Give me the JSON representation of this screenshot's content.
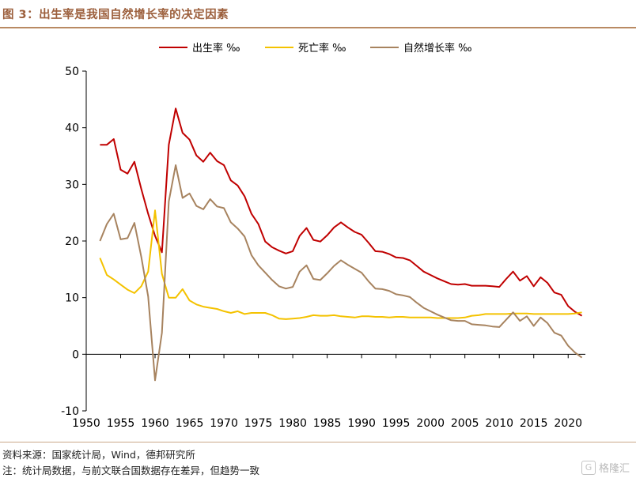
{
  "header": {
    "title": "图 3：出生率是我国自然增长率的决定因素"
  },
  "footer": {
    "source": "资料来源：国家统计局，Wind，德邦研究所",
    "note": "注：统计局数据，与前文联合国数据存在差异，但趋势一致"
  },
  "watermark": {
    "icon": "G",
    "text": "格隆汇"
  },
  "chart_data": {
    "type": "line",
    "x": [
      1952,
      1953,
      1954,
      1955,
      1956,
      1957,
      1958,
      1959,
      1960,
      1961,
      1962,
      1963,
      1964,
      1965,
      1966,
      1967,
      1968,
      1969,
      1970,
      1971,
      1972,
      1973,
      1974,
      1975,
      1976,
      1977,
      1978,
      1979,
      1980,
      1981,
      1982,
      1983,
      1984,
      1985,
      1986,
      1987,
      1988,
      1989,
      1990,
      1991,
      1992,
      1993,
      1994,
      1995,
      1996,
      1997,
      1998,
      1999,
      2000,
      2001,
      2002,
      2003,
      2004,
      2005,
      2006,
      2007,
      2008,
      2009,
      2010,
      2011,
      2012,
      2013,
      2014,
      2015,
      2016,
      2017,
      2018,
      2019,
      2020,
      2021,
      2022
    ],
    "xticks": [
      1950,
      1955,
      1960,
      1965,
      1970,
      1975,
      1980,
      1985,
      1990,
      1995,
      2000,
      2005,
      2010,
      2015,
      2020
    ],
    "yticks": [
      -10,
      0,
      10,
      20,
      30,
      40,
      50
    ],
    "xlim": [
      1950,
      2022.5
    ],
    "ylim": [
      -10,
      50
    ],
    "grid": false,
    "legend_position": "top",
    "series": [
      {
        "name": "出生率 ‰",
        "color": "#c00000",
        "values": [
          37,
          37,
          38,
          32.6,
          31.9,
          34,
          29.2,
          24.8,
          20.9,
          18,
          37,
          43.4,
          39.1,
          37.9,
          35.1,
          34,
          35.6,
          34.1,
          33.4,
          30.7,
          29.8,
          27.9,
          24.8,
          23,
          19.9,
          18.9,
          18.3,
          17.8,
          18.2,
          20.9,
          22.3,
          20.2,
          19.9,
          21,
          22.4,
          23.3,
          22.4,
          21.6,
          21.1,
          19.7,
          18.2,
          18.1,
          17.7,
          17.1,
          17,
          16.6,
          15.6,
          14.6,
          14,
          13.4,
          12.9,
          12.4,
          12.3,
          12.4,
          12.1,
          12.1,
          12.1,
          12,
          11.9,
          13.3,
          14.6,
          13,
          13.8,
          12,
          13.6,
          12.6,
          10.9,
          10.5,
          8.5,
          7.5,
          6.8
        ]
      },
      {
        "name": "死亡率 ‰",
        "color": "#f4c200",
        "values": [
          17,
          14,
          13.2,
          12.3,
          11.4,
          10.8,
          12,
          14.6,
          25.4,
          14.2,
          10,
          10,
          11.5,
          9.5,
          8.8,
          8.4,
          8.2,
          8,
          7.6,
          7.3,
          7.6,
          7.1,
          7.3,
          7.3,
          7.3,
          6.9,
          6.3,
          6.2,
          6.3,
          6.4,
          6.6,
          6.9,
          6.8,
          6.8,
          6.9,
          6.7,
          6.6,
          6.5,
          6.7,
          6.7,
          6.6,
          6.6,
          6.5,
          6.6,
          6.6,
          6.5,
          6.5,
          6.5,
          6.5,
          6.4,
          6.4,
          6.4,
          6.4,
          6.5,
          6.8,
          6.9,
          7.1,
          7.1,
          7.1,
          7.1,
          7.2,
          7.2,
          7.2,
          7.1,
          7.1,
          7.1,
          7.1,
          7.1,
          7.1,
          7.2,
          7.4
        ]
      },
      {
        "name": "自然增长率 ‰",
        "color": "#a7835f",
        "values": [
          20,
          23,
          24.8,
          20.3,
          20.5,
          23.2,
          17.2,
          10.2,
          -4.6,
          3.8,
          27,
          33.4,
          27.6,
          28.4,
          26.2,
          25.6,
          27.4,
          26.1,
          25.8,
          23.3,
          22.2,
          20.8,
          17.5,
          15.7,
          14.4,
          13.1,
          12,
          11.6,
          11.9,
          14.6,
          15.7,
          13.3,
          13.1,
          14.3,
          15.6,
          16.6,
          15.8,
          15.1,
          14.4,
          12.9,
          11.6,
          11.5,
          11.2,
          10.6,
          10.4,
          10.1,
          9.1,
          8.2,
          7.6,
          7,
          6.5,
          6,
          5.9,
          5.9,
          5.3,
          5.2,
          5.1,
          4.9,
          4.8,
          6.1,
          7.4,
          5.9,
          6.7,
          5,
          6.5,
          5.5,
          3.8,
          3.3,
          1.5,
          0.3,
          -0.6
        ]
      }
    ]
  }
}
